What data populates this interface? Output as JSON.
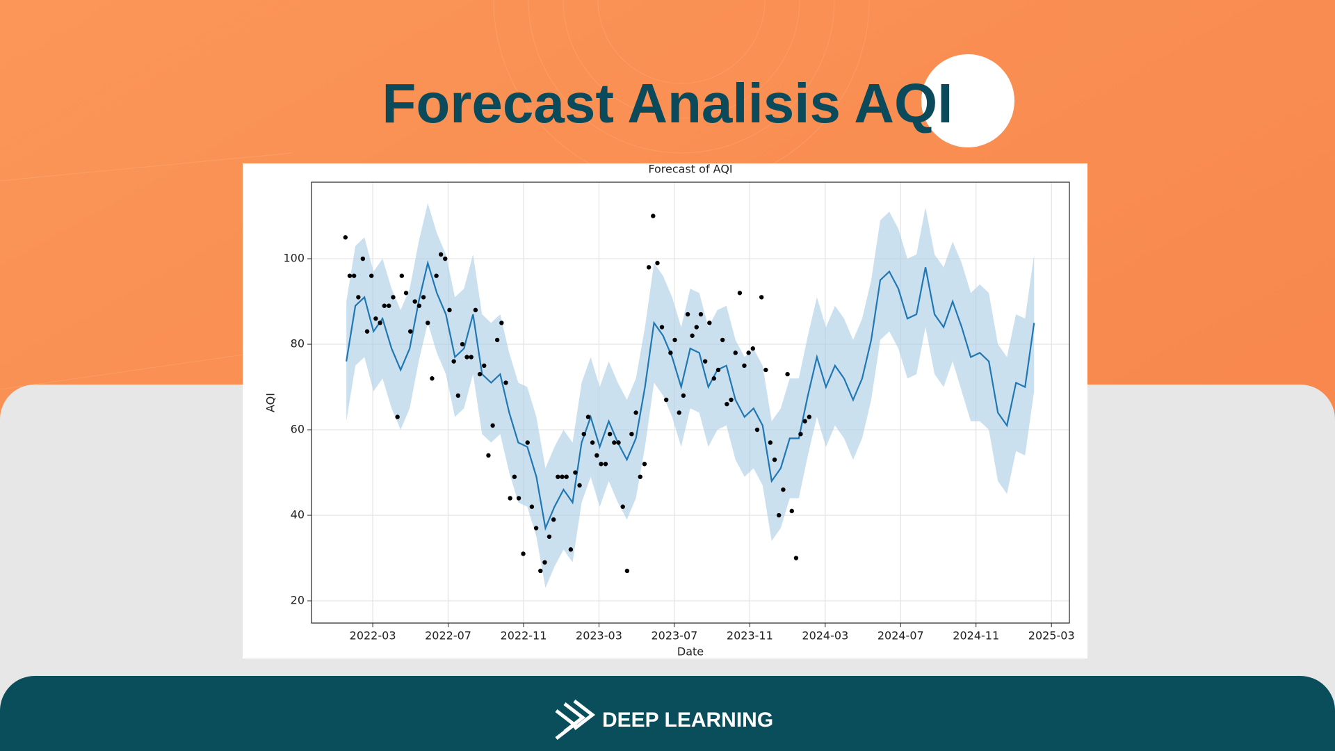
{
  "slide": {
    "title": "Forecast Analisis AQI",
    "brand": "DEEP LEARNING"
  },
  "chart_data": {
    "type": "forecast",
    "title": "Forecast of AQI",
    "x_label": "Date",
    "y_label": "AQI",
    "grid": true,
    "xlim": [
      2021.896,
      2025.246
    ],
    "ylim": [
      14.8,
      117.9
    ],
    "xticks": [
      {
        "value": 2022.1667,
        "label": "2022-03"
      },
      {
        "value": 2022.5,
        "label": "2022-07"
      },
      {
        "value": 2022.8333,
        "label": "2022-11"
      },
      {
        "value": 2023.1667,
        "label": "2023-03"
      },
      {
        "value": 2023.5,
        "label": "2023-07"
      },
      {
        "value": 2023.8333,
        "label": "2023-11"
      },
      {
        "value": 2024.1667,
        "label": "2024-03"
      },
      {
        "value": 2024.5,
        "label": "2024-07"
      },
      {
        "value": 2024.8333,
        "label": "2024-11"
      },
      {
        "value": 2025.1667,
        "label": "2025-03"
      }
    ],
    "yticks": [
      20,
      40,
      60,
      80,
      100
    ],
    "forecast": {
      "color": "#1f77b4",
      "band_color": "#a9cbe4",
      "x": [
        2022.05,
        2022.09,
        2022.13,
        2022.17,
        2022.21,
        2022.25,
        2022.29,
        2022.33,
        2022.37,
        2022.41,
        2022.45,
        2022.49,
        2022.53,
        2022.57,
        2022.61,
        2022.65,
        2022.69,
        2022.73,
        2022.77,
        2022.81,
        2022.85,
        2022.89,
        2022.93,
        2022.97,
        2023.01,
        2023.05,
        2023.09,
        2023.13,
        2023.17,
        2023.21,
        2023.25,
        2023.29,
        2023.33,
        2023.37,
        2023.41,
        2023.45,
        2023.49,
        2023.53,
        2023.57,
        2023.61,
        2023.65,
        2023.69,
        2023.73,
        2023.77,
        2023.81,
        2023.85,
        2023.89,
        2023.93,
        2023.97,
        2024.01,
        2024.05,
        2024.09,
        2024.13,
        2024.17,
        2024.21,
        2024.25,
        2024.29,
        2024.33,
        2024.37,
        2024.41,
        2024.45,
        2024.49,
        2024.53,
        2024.57,
        2024.61,
        2024.65,
        2024.69,
        2024.73,
        2024.77,
        2024.81,
        2024.85,
        2024.89,
        2024.93,
        2024.97,
        2025.01,
        2025.05,
        2025.09
      ],
      "values": [
        76,
        89,
        91,
        83,
        86,
        79,
        74,
        79,
        90,
        99,
        92,
        87,
        77,
        79,
        87,
        73,
        71,
        73,
        64,
        57,
        56,
        49,
        37,
        42,
        46,
        43,
        57,
        63,
        56,
        62,
        57,
        53,
        58,
        70,
        85,
        82,
        77,
        70,
        79,
        78,
        70,
        74,
        75,
        67,
        63,
        65,
        61,
        48,
        51,
        58,
        58,
        68,
        77,
        70,
        75,
        72,
        67,
        72,
        81,
        95,
        97,
        93,
        86,
        87,
        98,
        87,
        84,
        90,
        84,
        77,
        78,
        76,
        64,
        61,
        71,
        70,
        85
      ],
      "lower": [
        62,
        75,
        77,
        69,
        72,
        65,
        60,
        65,
        76,
        85,
        78,
        73,
        63,
        65,
        73,
        59,
        57,
        59,
        50,
        43,
        42,
        35,
        23,
        28,
        32,
        29,
        43,
        49,
        42,
        48,
        43,
        39,
        44,
        56,
        71,
        68,
        63,
        56,
        65,
        64,
        56,
        60,
        61,
        53,
        49,
        51,
        47,
        34,
        37,
        44,
        44,
        54,
        63,
        56,
        61,
        58,
        53,
        58,
        67,
        81,
        83,
        79,
        72,
        73,
        84,
        73,
        70,
        76,
        69,
        62,
        62,
        60,
        48,
        45,
        55,
        54,
        69
      ],
      "upper": [
        90,
        103,
        105,
        97,
        100,
        93,
        88,
        93,
        104,
        113,
        106,
        101,
        91,
        93,
        101,
        87,
        85,
        87,
        78,
        71,
        70,
        63,
        51,
        56,
        60,
        57,
        71,
        77,
        70,
        76,
        71,
        67,
        72,
        84,
        99,
        96,
        91,
        84,
        93,
        92,
        84,
        88,
        89,
        81,
        77,
        79,
        75,
        62,
        65,
        72,
        72,
        82,
        91,
        84,
        89,
        86,
        81,
        86,
        95,
        109,
        111,
        107,
        100,
        101,
        112,
        101,
        98,
        104,
        99,
        92,
        94,
        92,
        80,
        77,
        87,
        86,
        101
      ]
    },
    "observed": {
      "color": "#000000",
      "x": [
        2022.046,
        2022.065,
        2022.084,
        2022.103,
        2022.123,
        2022.142,
        2022.161,
        2022.18,
        2022.199,
        2022.218,
        2022.238,
        2022.257,
        2022.276,
        2022.295,
        2022.314,
        2022.333,
        2022.353,
        2022.372,
        2022.391,
        2022.41,
        2022.429,
        2022.448,
        2022.468,
        2022.487,
        2022.506,
        2022.525,
        2022.544,
        2022.563,
        2022.583,
        2022.602,
        2022.621,
        2022.64,
        2022.659,
        2022.678,
        2022.697,
        2022.717,
        2022.736,
        2022.755,
        2022.774,
        2022.793,
        2022.812,
        2022.832,
        2022.851,
        2022.87,
        2022.889,
        2022.908,
        2022.927,
        2022.947,
        2022.966,
        2022.985,
        2023.004,
        2023.023,
        2023.042,
        2023.062,
        2023.081,
        2023.1,
        2023.119,
        2023.138,
        2023.157,
        2023.176,
        2023.196,
        2023.215,
        2023.234,
        2023.253,
        2023.272,
        2023.291,
        2023.311,
        2023.33,
        2023.349,
        2023.368,
        2023.387,
        2023.406,
        2023.425,
        2023.445,
        2023.464,
        2023.483,
        2023.502,
        2023.521,
        2023.54,
        2023.559,
        2023.579,
        2023.598,
        2023.617,
        2023.636,
        2023.655,
        2023.675,
        2023.694,
        2023.713,
        2023.732,
        2023.751,
        2023.77,
        2023.789,
        2023.809,
        2023.828,
        2023.847,
        2023.866,
        2023.885,
        2023.904,
        2023.924,
        2023.943,
        2023.962,
        2023.981,
        2024.0,
        2024.019,
        2024.038,
        2024.058,
        2024.077,
        2024.096
      ],
      "values": [
        105,
        96,
        96,
        91,
        100,
        83,
        96,
        86,
        85,
        89,
        89,
        91,
        63,
        96,
        92,
        83,
        90,
        89,
        91,
        85,
        72,
        96,
        101,
        100,
        88,
        76,
        68,
        80,
        77,
        77,
        88,
        73,
        75,
        54,
        61,
        81,
        85,
        71,
        44,
        49,
        44,
        31,
        57,
        42,
        37,
        27,
        29,
        35,
        39,
        49,
        49,
        49,
        32,
        50,
        47,
        59,
        63,
        57,
        54,
        52,
        52,
        59,
        57,
        57,
        42,
        27,
        59,
        64,
        49,
        52,
        98,
        110,
        99,
        84,
        67,
        78,
        81,
        64,
        68,
        87,
        82,
        84,
        87,
        76,
        85,
        72,
        74,
        81,
        66,
        67,
        78,
        92,
        75,
        78,
        79,
        60,
        91,
        74,
        57,
        53,
        40,
        46,
        73,
        41,
        30,
        59,
        62,
        63
      ]
    }
  }
}
